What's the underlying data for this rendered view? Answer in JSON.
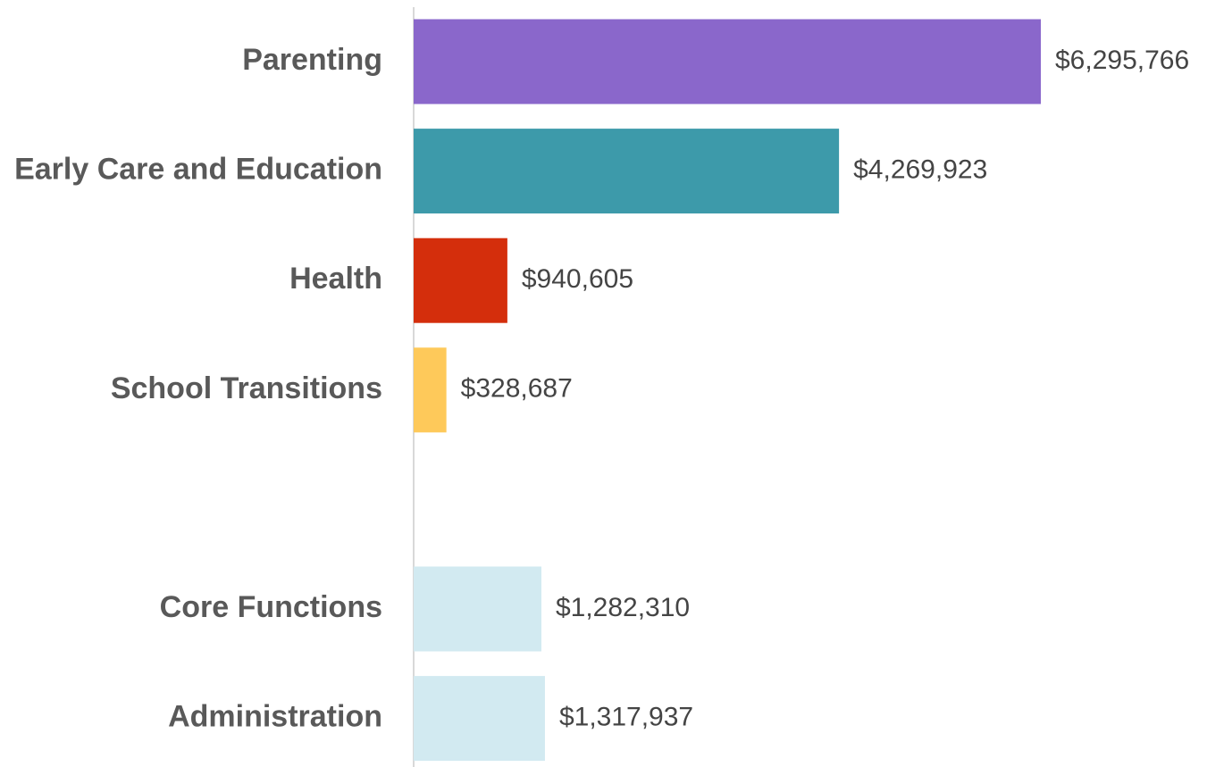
{
  "chart_data": {
    "type": "bar",
    "orientation": "horizontal",
    "categories": [
      "Parenting",
      "Early Care and Education",
      "Health",
      "School Transitions",
      null,
      "Core Functions",
      "Administration"
    ],
    "values": [
      6295766,
      4269923,
      940605,
      328687,
      null,
      1282310,
      1317937
    ],
    "value_labels": [
      "$6,295,766",
      "$4,269,923",
      "$940,605",
      "$328,687",
      null,
      "$1,282,310",
      "$1,317,937"
    ],
    "colors": [
      "#8a67cb",
      "#3d9aaa",
      "#d42e0c",
      "#fec95a",
      null,
      "#d2eaf1",
      "#d2eaf1"
    ]
  }
}
